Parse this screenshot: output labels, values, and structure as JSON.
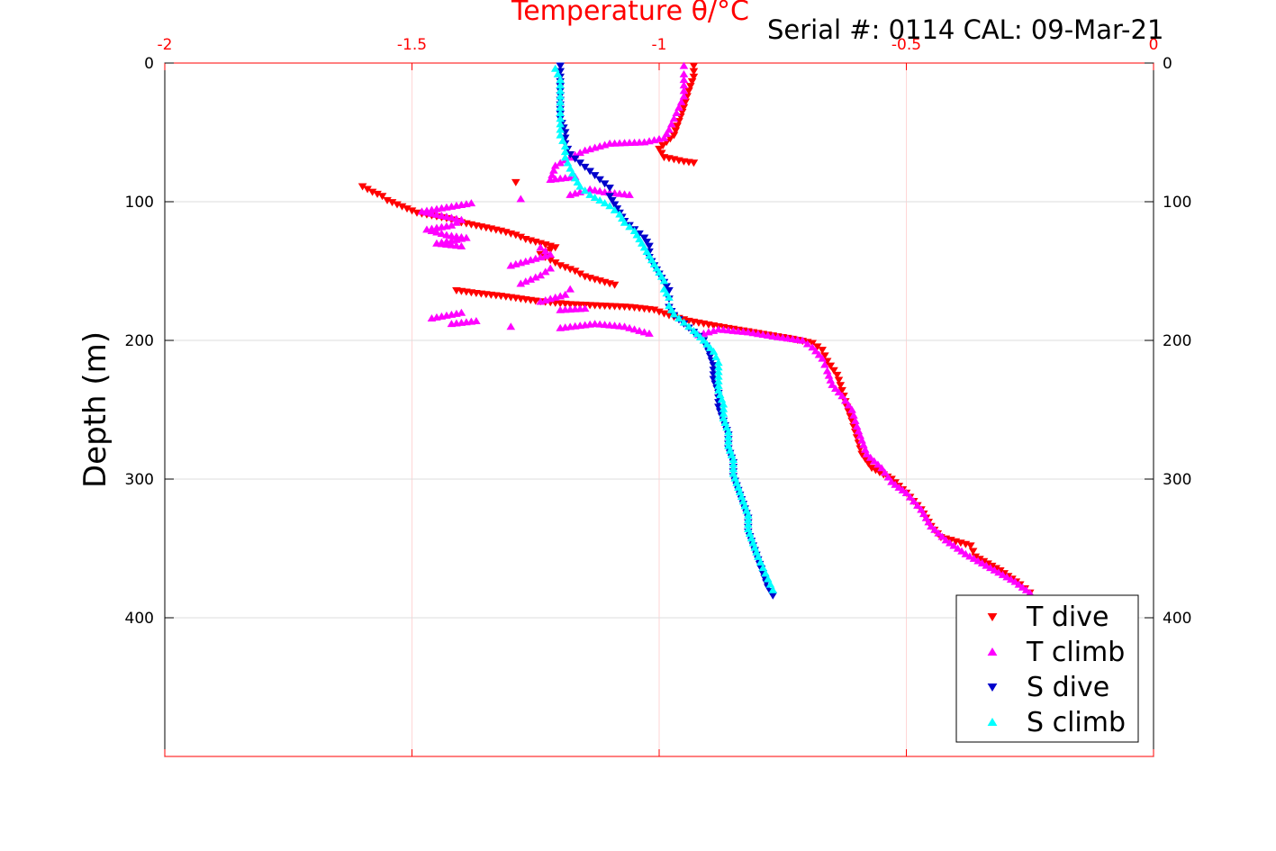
{
  "header": {
    "title": "Temperature θ/°C",
    "serial": "Serial #: 0114  CAL: 09-Mar-21"
  },
  "colors": {
    "t_dive": "#ff0000",
    "t_climb": "#ff00ff",
    "s_dive": "#0000cc",
    "s_climb": "#00ffff",
    "top_axis": "#ff0000",
    "grid": "#dddddd"
  },
  "chart_data": {
    "type": "scatter",
    "title": "Temperature θ/°C",
    "ylabel": "Depth (m)",
    "xlim": [
      -2,
      0
    ],
    "ylim": [
      500,
      0
    ],
    "y_inverted": true,
    "grid": true,
    "legend_position": "bottom-right",
    "x_ticks": [
      "-2",
      "-1.5",
      "-1",
      "-0.5",
      "0"
    ],
    "y_ticks": [
      "0",
      "100",
      "200",
      "300",
      "400"
    ],
    "series": [
      {
        "name": "T dive",
        "marker": "triangle-down",
        "color": "#ff0000",
        "points": [
          [
            -0.93,
            2
          ],
          [
            -0.93,
            10
          ],
          [
            -0.94,
            20
          ],
          [
            -0.95,
            32
          ],
          [
            -0.96,
            42
          ],
          [
            -0.97,
            52
          ],
          [
            -1.0,
            62
          ],
          [
            -0.99,
            68
          ],
          [
            -0.95,
            71
          ],
          [
            -0.93,
            72
          ],
          [
            -1.29,
            86
          ],
          [
            -1.6,
            89
          ],
          [
            -1.58,
            93
          ],
          [
            -1.56,
            96
          ],
          [
            -1.55,
            99
          ],
          [
            -1.53,
            102
          ],
          [
            -1.51,
            105
          ],
          [
            -1.49,
            108
          ],
          [
            -1.46,
            110
          ],
          [
            -1.43,
            112
          ],
          [
            -1.4,
            115
          ],
          [
            -1.36,
            118
          ],
          [
            -1.32,
            121
          ],
          [
            -1.29,
            124
          ],
          [
            -1.27,
            127
          ],
          [
            -1.24,
            130
          ],
          [
            -1.21,
            133
          ],
          [
            -1.24,
            138
          ],
          [
            -1.22,
            142
          ],
          [
            -1.2,
            146
          ],
          [
            -1.17,
            150
          ],
          [
            -1.15,
            154
          ],
          [
            -1.12,
            157
          ],
          [
            -1.09,
            160
          ],
          [
            -1.41,
            164
          ],
          [
            -1.37,
            166
          ],
          [
            -1.32,
            168
          ],
          [
            -1.28,
            170
          ],
          [
            -1.24,
            172
          ],
          [
            -1.18,
            174
          ],
          [
            -1.12,
            175
          ],
          [
            -1.06,
            176
          ],
          [
            -1.01,
            178
          ],
          [
            -0.98,
            182
          ],
          [
            -0.94,
            186
          ],
          [
            -0.88,
            190
          ],
          [
            -0.83,
            193
          ],
          [
            -0.78,
            196
          ],
          [
            -0.73,
            199
          ],
          [
            -0.69,
            202
          ],
          [
            -0.67,
            207
          ],
          [
            -0.66,
            215
          ],
          [
            -0.64,
            225
          ],
          [
            -0.63,
            236
          ],
          [
            -0.62,
            248
          ],
          [
            -0.61,
            258
          ],
          [
            -0.6,
            270
          ],
          [
            -0.59,
            282
          ],
          [
            -0.57,
            292
          ],
          [
            -0.53,
            300
          ],
          [
            -0.5,
            310
          ],
          [
            -0.47,
            322
          ],
          [
            -0.45,
            334
          ],
          [
            -0.43,
            342
          ],
          [
            -0.37,
            348
          ],
          [
            -0.36,
            356
          ],
          [
            -0.31,
            366
          ],
          [
            -0.27,
            376
          ],
          [
            -0.25,
            382
          ]
        ]
      },
      {
        "name": "T climb",
        "marker": "triangle-up",
        "color": "#ff00ff",
        "points": [
          [
            -0.25,
            382
          ],
          [
            -0.28,
            374
          ],
          [
            -0.33,
            364
          ],
          [
            -0.38,
            354
          ],
          [
            -0.42,
            344
          ],
          [
            -0.45,
            334
          ],
          [
            -0.47,
            322
          ],
          [
            -0.5,
            310
          ],
          [
            -0.53,
            302
          ],
          [
            -0.55,
            292
          ],
          [
            -0.58,
            282
          ],
          [
            -0.59,
            272
          ],
          [
            -0.6,
            262
          ],
          [
            -0.61,
            250
          ],
          [
            -0.63,
            240
          ],
          [
            -0.65,
            232
          ],
          [
            -0.66,
            222
          ],
          [
            -0.67,
            213
          ],
          [
            -0.69,
            205
          ],
          [
            -0.71,
            200
          ],
          [
            -0.77,
            197
          ],
          [
            -0.82,
            194
          ],
          [
            -0.88,
            192
          ],
          [
            -0.92,
            196
          ],
          [
            -1.02,
            195
          ],
          [
            -1.07,
            190
          ],
          [
            -1.13,
            188
          ],
          [
            -1.2,
            191
          ],
          [
            -1.3,
            190
          ],
          [
            -1.42,
            188
          ],
          [
            -1.37,
            186
          ],
          [
            -1.46,
            184
          ],
          [
            -1.4,
            180
          ],
          [
            -1.2,
            178
          ],
          [
            -1.15,
            177
          ],
          [
            -1.24,
            172
          ],
          [
            -1.19,
            167
          ],
          [
            -1.18,
            163
          ],
          [
            -1.28,
            159
          ],
          [
            -1.24,
            153
          ],
          [
            -1.22,
            148
          ],
          [
            -1.3,
            146
          ],
          [
            -1.26,
            142
          ],
          [
            -1.22,
            138
          ],
          [
            -1.24,
            133
          ],
          [
            -1.4,
            132
          ],
          [
            -1.45,
            130
          ],
          [
            -1.39,
            126
          ],
          [
            -1.43,
            124
          ],
          [
            -1.47,
            120
          ],
          [
            -1.42,
            117
          ],
          [
            -1.4,
            113
          ],
          [
            -1.44,
            110
          ],
          [
            -1.48,
            107
          ],
          [
            -1.43,
            104
          ],
          [
            -1.38,
            101
          ],
          [
            -1.28,
            98
          ],
          [
            -1.18,
            95
          ],
          [
            -1.14,
            91
          ],
          [
            -1.11,
            93
          ],
          [
            -1.06,
            95
          ],
          [
            -1.17,
            82
          ],
          [
            -1.22,
            84
          ],
          [
            -1.21,
            74
          ],
          [
            -1.18,
            68
          ],
          [
            -1.15,
            63
          ],
          [
            -1.1,
            58
          ],
          [
            -1.03,
            57
          ],
          [
            -0.99,
            54
          ],
          [
            -0.98,
            48
          ],
          [
            -0.97,
            40
          ],
          [
            -0.96,
            32
          ],
          [
            -0.95,
            24
          ],
          [
            -0.95,
            16
          ],
          [
            -0.95,
            8
          ],
          [
            -0.95,
            2
          ]
        ]
      },
      {
        "name": "S dive",
        "marker": "triangle-down",
        "color": "#0000cc",
        "points": [
          [
            -1.2,
            2
          ],
          [
            -1.2,
            10
          ],
          [
            -1.2,
            20
          ],
          [
            -1.2,
            30
          ],
          [
            -1.2,
            40
          ],
          [
            -1.19,
            50
          ],
          [
            -1.19,
            58
          ],
          [
            -1.18,
            66
          ],
          [
            -1.16,
            72
          ],
          [
            -1.14,
            78
          ],
          [
            -1.12,
            84
          ],
          [
            -1.1,
            90
          ],
          [
            -1.1,
            96
          ],
          [
            -1.09,
            102
          ],
          [
            -1.08,
            108
          ],
          [
            -1.07,
            114
          ],
          [
            -1.05,
            120
          ],
          [
            -1.03,
            126
          ],
          [
            -1.02,
            132
          ],
          [
            -1.02,
            140
          ],
          [
            -1.01,
            146
          ],
          [
            -1.0,
            152
          ],
          [
            -0.99,
            158
          ],
          [
            -0.98,
            164
          ],
          [
            -0.98,
            170
          ],
          [
            -0.98,
            176
          ],
          [
            -0.97,
            182
          ],
          [
            -0.95,
            188
          ],
          [
            -0.93,
            194
          ],
          [
            -0.91,
            200
          ],
          [
            -0.9,
            208
          ],
          [
            -0.89,
            218
          ],
          [
            -0.89,
            228
          ],
          [
            -0.88,
            238
          ],
          [
            -0.88,
            248
          ],
          [
            -0.87,
            258
          ],
          [
            -0.86,
            268
          ],
          [
            -0.86,
            278
          ],
          [
            -0.85,
            288
          ],
          [
            -0.85,
            298
          ],
          [
            -0.84,
            308
          ],
          [
            -0.83,
            318
          ],
          [
            -0.82,
            328
          ],
          [
            -0.82,
            338
          ],
          [
            -0.81,
            348
          ],
          [
            -0.8,
            358
          ],
          [
            -0.79,
            368
          ],
          [
            -0.78,
            378
          ],
          [
            -0.77,
            384
          ]
        ]
      },
      {
        "name": "S climb",
        "marker": "triangle-up",
        "color": "#00ffff",
        "points": [
          [
            -0.77,
            380
          ],
          [
            -0.78,
            372
          ],
          [
            -0.79,
            364
          ],
          [
            -0.8,
            356
          ],
          [
            -0.81,
            346
          ],
          [
            -0.82,
            336
          ],
          [
            -0.82,
            326
          ],
          [
            -0.83,
            316
          ],
          [
            -0.84,
            306
          ],
          [
            -0.85,
            296
          ],
          [
            -0.85,
            286
          ],
          [
            -0.86,
            276
          ],
          [
            -0.86,
            266
          ],
          [
            -0.87,
            256
          ],
          [
            -0.87,
            246
          ],
          [
            -0.88,
            236
          ],
          [
            -0.88,
            226
          ],
          [
            -0.88,
            216
          ],
          [
            -0.89,
            208
          ],
          [
            -0.91,
            200
          ],
          [
            -0.93,
            193
          ],
          [
            -0.95,
            187
          ],
          [
            -0.97,
            181
          ],
          [
            -0.98,
            175
          ],
          [
            -0.98,
            169
          ],
          [
            -0.99,
            163
          ],
          [
            -0.99,
            157
          ],
          [
            -1.0,
            151
          ],
          [
            -1.01,
            145
          ],
          [
            -1.02,
            139
          ],
          [
            -1.03,
            133
          ],
          [
            -1.04,
            127
          ],
          [
            -1.05,
            121
          ],
          [
            -1.07,
            115
          ],
          [
            -1.08,
            109
          ],
          [
            -1.1,
            103
          ],
          [
            -1.12,
            99
          ],
          [
            -1.14,
            95
          ],
          [
            -1.16,
            89
          ],
          [
            -1.17,
            83
          ],
          [
            -1.18,
            76
          ],
          [
            -1.19,
            68
          ],
          [
            -1.19,
            60
          ],
          [
            -1.2,
            52
          ],
          [
            -1.2,
            44
          ],
          [
            -1.2,
            36
          ],
          [
            -1.2,
            28
          ],
          [
            -1.2,
            20
          ],
          [
            -1.2,
            12
          ],
          [
            -1.21,
            4
          ]
        ]
      }
    ]
  }
}
